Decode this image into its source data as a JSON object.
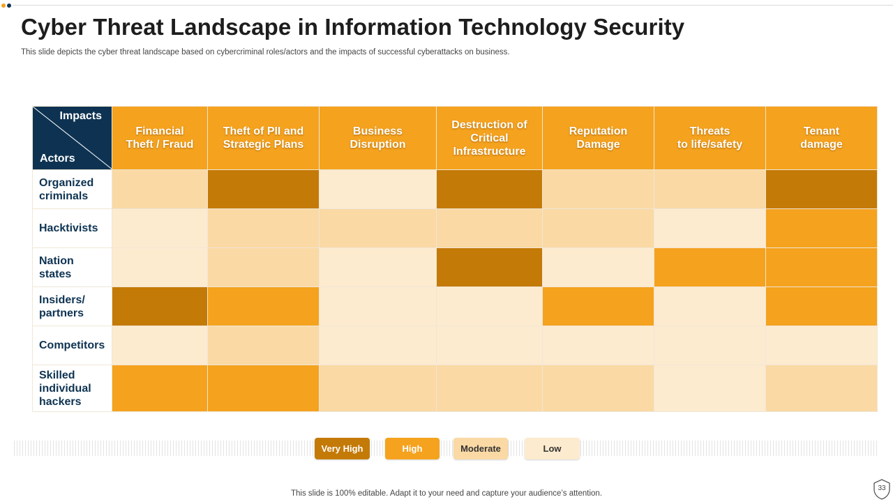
{
  "slide": {
    "title": "Cyber Threat Landscape in Information Technology Security",
    "subtitle": "This slide depicts the cyber threat landscape based on cybercriminal roles/actors and the impacts of successful cyberattacks on business.",
    "footer": "This slide is 100% editable. Adapt it to your need and capture your audience’s attention.",
    "page_number": "33"
  },
  "matrix": {
    "corner_top": "Impacts",
    "corner_bottom": "Actors",
    "columns": [
      [
        "Financial",
        "Theft / Fraud"
      ],
      [
        "Theft of PII and",
        "Strategic Plans"
      ],
      [
        "Business",
        "Disruption"
      ],
      [
        "Destruction of",
        "Critical",
        "Infrastructure"
      ],
      [
        "Reputation",
        "Damage"
      ],
      [
        "Threats",
        "to life/safety"
      ],
      [
        "Tenant",
        "damage"
      ]
    ],
    "rows": [
      {
        "actor": [
          "Organized",
          "criminals"
        ],
        "levels": [
          "Moderate",
          "Very High",
          "Low",
          "Very High",
          "Moderate",
          "Moderate",
          "Very High"
        ]
      },
      {
        "actor": [
          "Hacktivists"
        ],
        "levels": [
          "Low",
          "Moderate",
          "Moderate",
          "Moderate",
          "Moderate",
          "Low",
          "High"
        ]
      },
      {
        "actor": [
          "Nation",
          "states"
        ],
        "levels": [
          "Low",
          "Moderate",
          "Low",
          "Very High",
          "Low",
          "High",
          "High"
        ]
      },
      {
        "actor": [
          "Insiders/",
          "partners"
        ],
        "levels": [
          "Very High",
          "High",
          "Low",
          "Low",
          "High",
          "Low",
          "High"
        ]
      },
      {
        "actor": [
          "Competitors"
        ],
        "levels": [
          "Low",
          "Moderate",
          "Low",
          "Low",
          "Low",
          "Low",
          "Low"
        ]
      },
      {
        "actor": [
          "Skilled",
          "individual",
          "hackers"
        ],
        "levels": [
          "High",
          "High",
          "Moderate",
          "Moderate",
          "Moderate",
          "Low",
          "Moderate"
        ]
      }
    ]
  },
  "legend": {
    "very_high": "Very High",
    "high": "High",
    "moderate": "Moderate",
    "low": "Low"
  },
  "colors": {
    "very_high": "#c47a06",
    "high": "#f5a21e",
    "moderate": "#fad9a4",
    "low": "#fdebcf",
    "navy": "#0e3352"
  }
}
